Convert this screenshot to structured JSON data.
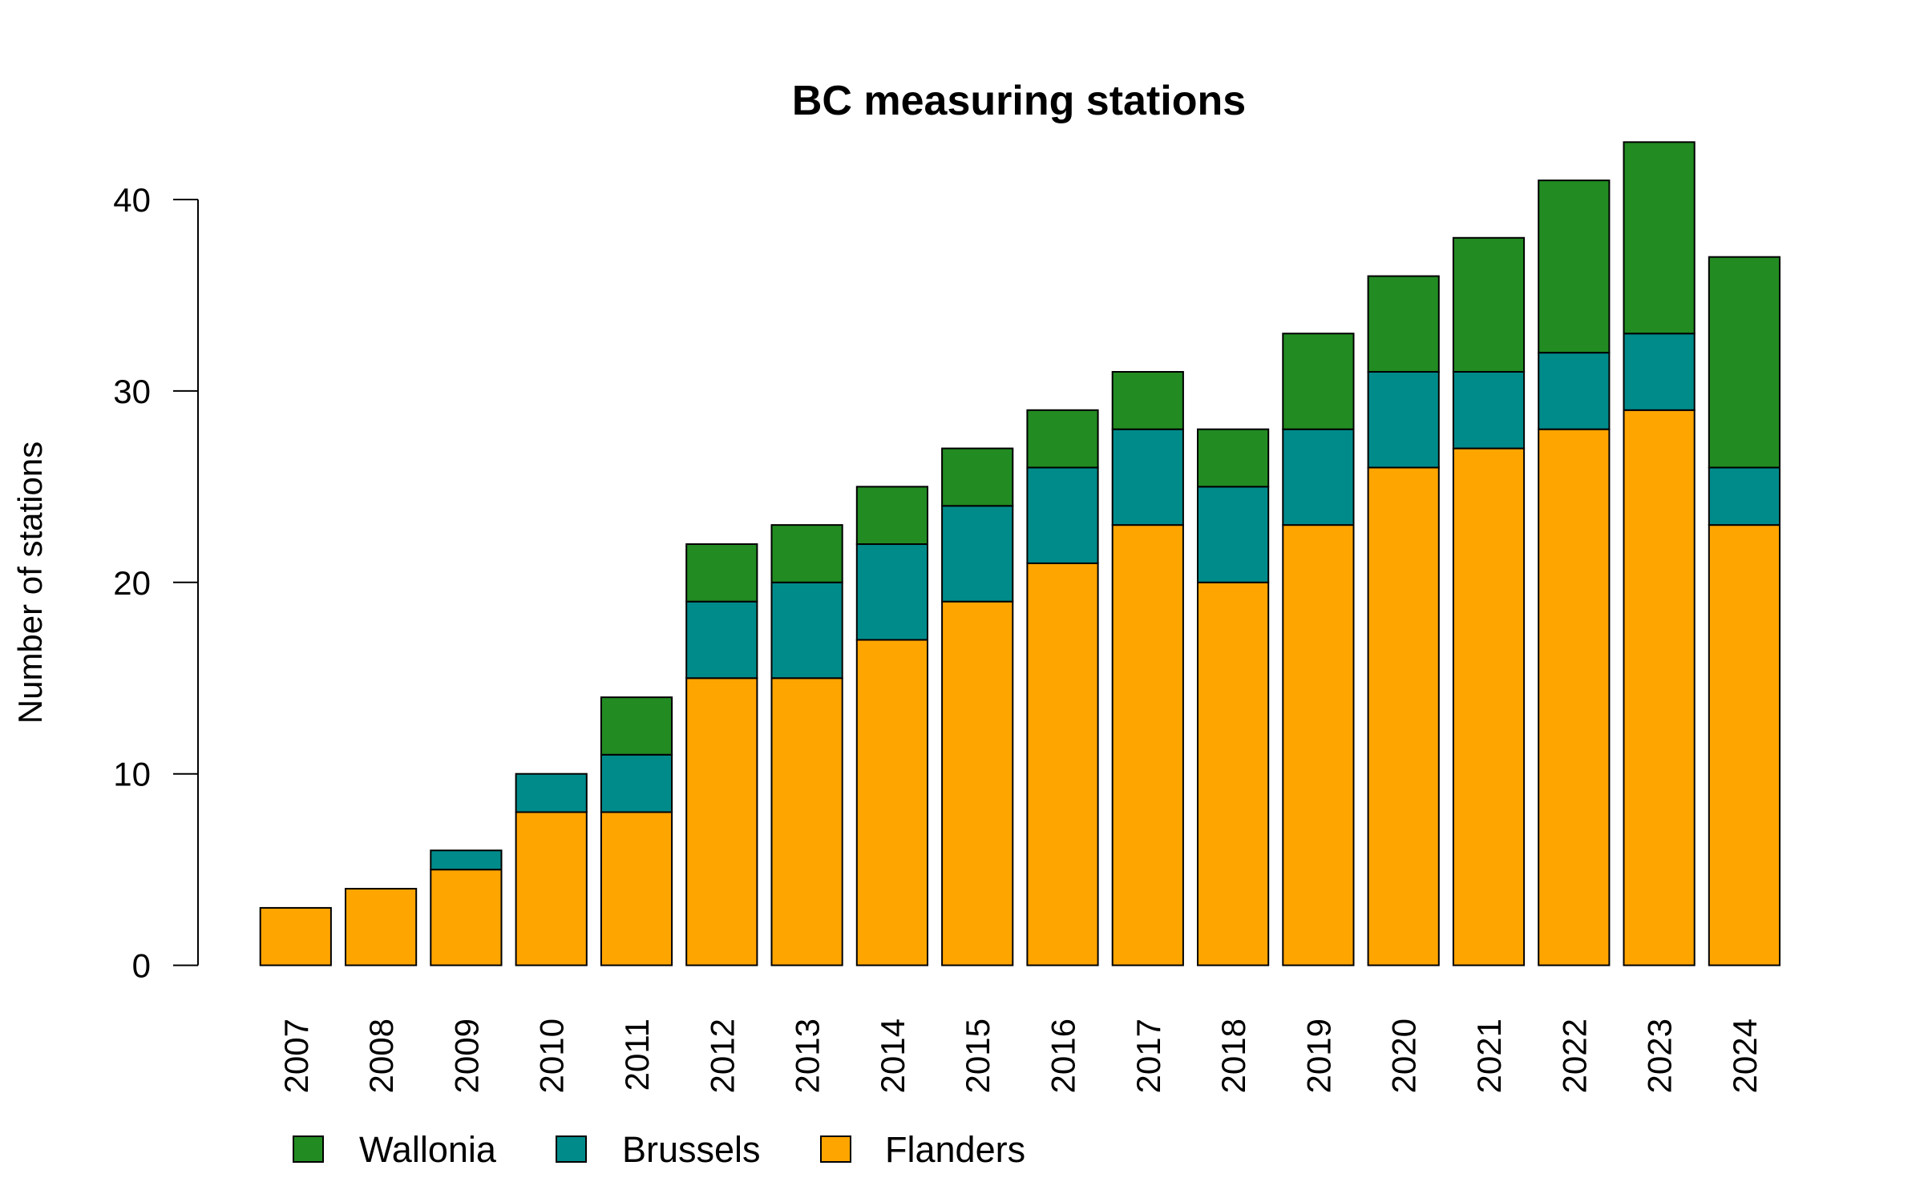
{
  "chart_data": {
    "type": "bar",
    "stacked": true,
    "title": "BC measuring stations",
    "xlabel": "",
    "ylabel": "Number of stations",
    "ylim": [
      0,
      43
    ],
    "yticks": [
      0,
      10,
      20,
      30,
      40
    ],
    "grid": false,
    "legend_placement": "bottom-left",
    "categories": [
      "2007",
      "2008",
      "2009",
      "2010",
      "2011",
      "2012",
      "2013",
      "2014",
      "2015",
      "2016",
      "2017",
      "2018",
      "2019",
      "2020",
      "2021",
      "2022",
      "2023",
      "2024"
    ],
    "series": [
      {
        "name": "Flanders",
        "color": "#FFA500",
        "values": [
          3,
          4,
          5,
          8,
          8,
          15,
          15,
          17,
          19,
          21,
          23,
          20,
          23,
          26,
          27,
          28,
          29,
          23
        ]
      },
      {
        "name": "Brussels",
        "color": "#008B8B",
        "values": [
          0,
          0,
          1,
          2,
          3,
          4,
          5,
          5,
          5,
          5,
          5,
          5,
          5,
          5,
          4,
          4,
          4,
          3
        ]
      },
      {
        "name": "Wallonia",
        "color": "#228B22",
        "values": [
          0,
          0,
          0,
          0,
          3,
          3,
          3,
          3,
          3,
          3,
          3,
          3,
          5,
          5,
          7,
          9,
          10,
          11
        ]
      }
    ],
    "legend_order": [
      "Wallonia",
      "Brussels",
      "Flanders"
    ]
  }
}
